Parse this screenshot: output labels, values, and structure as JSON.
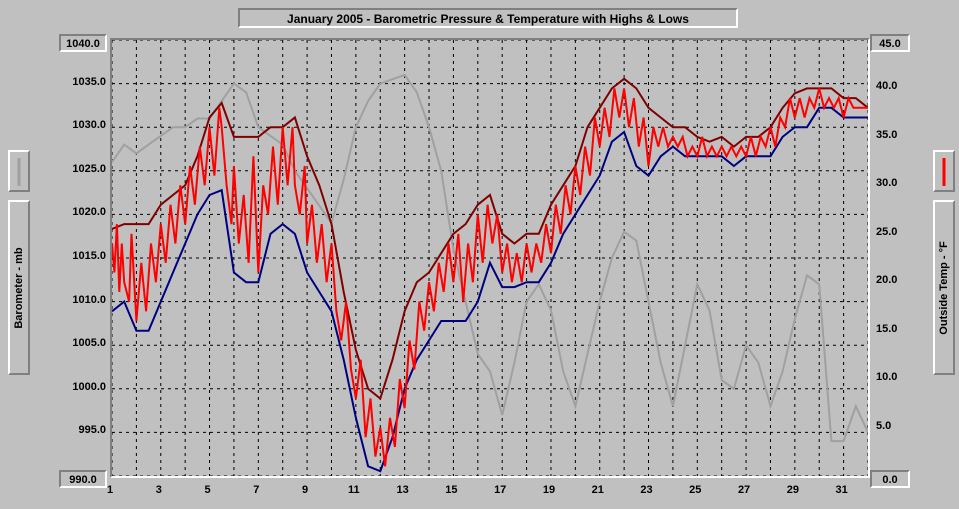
{
  "title": "January 2005 - Barometric Pressure & Temperature with Highs & Lows",
  "left_axis_label": "Barometer - mb",
  "right_axis_label": "Outside Temp - °F",
  "background_color": "#c0c0c0",
  "grid_color": "#000000",
  "plot": {
    "x_min": 1,
    "x_max": 32,
    "y_left_min": 990.0,
    "y_left_max": 1040.0,
    "y_right_min": 0.0,
    "y_right_max": 45.0,
    "x_ticks": [
      1,
      3,
      5,
      7,
      9,
      11,
      13,
      15,
      17,
      19,
      21,
      23,
      25,
      27,
      29,
      31
    ],
    "y_left_ticks": [
      990.0,
      995.0,
      1000.0,
      1005.0,
      1010.0,
      1015.0,
      1020.0,
      1025.0,
      1030.0,
      1035.0,
      1040.0
    ],
    "y_right_ticks": [
      0.0,
      5.0,
      10.0,
      15.0,
      20.0,
      25.0,
      30.0,
      35.0,
      40.0,
      45.0
    ]
  },
  "series": {
    "barometer": {
      "color": "#a0a0a0",
      "width": 2,
      "data": [
        [
          1,
          1026
        ],
        [
          1.5,
          1028
        ],
        [
          2,
          1027
        ],
        [
          2.5,
          1028
        ],
        [
          3,
          1029
        ],
        [
          3.5,
          1030
        ],
        [
          4,
          1030
        ],
        [
          4.5,
          1031
        ],
        [
          5,
          1031
        ],
        [
          5.5,
          1033
        ],
        [
          6,
          1035
        ],
        [
          6.5,
          1034
        ],
        [
          7,
          1030
        ],
        [
          7.5,
          1029
        ],
        [
          8,
          1028
        ],
        [
          8.5,
          1025
        ],
        [
          9,
          1023
        ],
        [
          9.5,
          1021
        ],
        [
          10,
          1019
        ],
        [
          10.5,
          1024
        ],
        [
          11,
          1030
        ],
        [
          11.5,
          1033
        ],
        [
          12,
          1035
        ],
        [
          12.5,
          1035.5
        ],
        [
          13,
          1036
        ],
        [
          13.5,
          1034
        ],
        [
          14,
          1030
        ],
        [
          14.5,
          1025
        ],
        [
          15,
          1016
        ],
        [
          15.5,
          1010
        ],
        [
          16,
          1004
        ],
        [
          16.5,
          1002
        ],
        [
          17,
          997
        ],
        [
          17.5,
          1003
        ],
        [
          18,
          1010
        ],
        [
          18.5,
          1012
        ],
        [
          19,
          1009
        ],
        [
          19.5,
          1002
        ],
        [
          20,
          998
        ],
        [
          20.5,
          1004
        ],
        [
          21,
          1010
        ],
        [
          21.5,
          1015
        ],
        [
          22,
          1018
        ],
        [
          22.5,
          1017
        ],
        [
          23,
          1010
        ],
        [
          23.5,
          1003
        ],
        [
          24,
          998
        ],
        [
          24.5,
          1005
        ],
        [
          25,
          1012
        ],
        [
          25.5,
          1009
        ],
        [
          26,
          1001
        ],
        [
          26.5,
          1000
        ],
        [
          27,
          1005
        ],
        [
          27.5,
          1003
        ],
        [
          28,
          998
        ],
        [
          28.5,
          1002
        ],
        [
          29,
          1008
        ],
        [
          29.5,
          1013
        ],
        [
          30,
          1012
        ],
        [
          30.5,
          994
        ],
        [
          31,
          994
        ],
        [
          31.5,
          998
        ],
        [
          32,
          995
        ]
      ]
    },
    "temp_high": {
      "color": "#800000",
      "width": 2,
      "data": [
        [
          1,
          25.5
        ],
        [
          1.5,
          26
        ],
        [
          2,
          26
        ],
        [
          2.5,
          26
        ],
        [
          3,
          28
        ],
        [
          3.5,
          29
        ],
        [
          4,
          30
        ],
        [
          4.5,
          33
        ],
        [
          5,
          37
        ],
        [
          5.5,
          38.5
        ],
        [
          6,
          35
        ],
        [
          6.5,
          35
        ],
        [
          7,
          35
        ],
        [
          7.5,
          36
        ],
        [
          8,
          36
        ],
        [
          8.5,
          37
        ],
        [
          9,
          33
        ],
        [
          9.5,
          30
        ],
        [
          10,
          26
        ],
        [
          10.5,
          19
        ],
        [
          11,
          13
        ],
        [
          11.5,
          9
        ],
        [
          12,
          8
        ],
        [
          12.5,
          12
        ],
        [
          13,
          17
        ],
        [
          13.5,
          20
        ],
        [
          14,
          21
        ],
        [
          14.5,
          23
        ],
        [
          15,
          25
        ],
        [
          15.5,
          26
        ],
        [
          16,
          28
        ],
        [
          16.5,
          29
        ],
        [
          17,
          25
        ],
        [
          17.5,
          24
        ],
        [
          18,
          25
        ],
        [
          18.5,
          25
        ],
        [
          19,
          28
        ],
        [
          19.5,
          30
        ],
        [
          20,
          32
        ],
        [
          20.5,
          36
        ],
        [
          21,
          38
        ],
        [
          21.5,
          40
        ],
        [
          22,
          41
        ],
        [
          22.5,
          40
        ],
        [
          23,
          38
        ],
        [
          23.5,
          37
        ],
        [
          24,
          36
        ],
        [
          24.5,
          36
        ],
        [
          25,
          35
        ],
        [
          25.5,
          34.5
        ],
        [
          26,
          35
        ],
        [
          26.5,
          34
        ],
        [
          27,
          35
        ],
        [
          27.5,
          35
        ],
        [
          28,
          36
        ],
        [
          28.5,
          38
        ],
        [
          29,
          39.5
        ],
        [
          29.5,
          40
        ],
        [
          30,
          40
        ],
        [
          30.5,
          40
        ],
        [
          31,
          39
        ],
        [
          31.5,
          39
        ],
        [
          32,
          38
        ]
      ]
    },
    "temp_low": {
      "color": "#000080",
      "width": 2,
      "data": [
        [
          1,
          17
        ],
        [
          1.5,
          18
        ],
        [
          2,
          15
        ],
        [
          2.5,
          15
        ],
        [
          3,
          18
        ],
        [
          3.5,
          21
        ],
        [
          4,
          24
        ],
        [
          4.5,
          27
        ],
        [
          5,
          29
        ],
        [
          5.5,
          29.5
        ],
        [
          6,
          21
        ],
        [
          6.5,
          20
        ],
        [
          7,
          20
        ],
        [
          7.5,
          25
        ],
        [
          8,
          26
        ],
        [
          8.5,
          25
        ],
        [
          9,
          21
        ],
        [
          9.5,
          19
        ],
        [
          10,
          17
        ],
        [
          10.5,
          12
        ],
        [
          11,
          6
        ],
        [
          11.5,
          1
        ],
        [
          12,
          0.5
        ],
        [
          12.5,
          4
        ],
        [
          13,
          9
        ],
        [
          13.5,
          12
        ],
        [
          14,
          14
        ],
        [
          14.5,
          16
        ],
        [
          15,
          16
        ],
        [
          15.5,
          16
        ],
        [
          16,
          18
        ],
        [
          16.5,
          22
        ],
        [
          17,
          19.5
        ],
        [
          17.5,
          19.5
        ],
        [
          18,
          20
        ],
        [
          18.5,
          20
        ],
        [
          19,
          22
        ],
        [
          19.5,
          25
        ],
        [
          20,
          27
        ],
        [
          20.5,
          29
        ],
        [
          21,
          31
        ],
        [
          21.5,
          34.5
        ],
        [
          22,
          35.5
        ],
        [
          22.5,
          32
        ],
        [
          23,
          31
        ],
        [
          23.5,
          33
        ],
        [
          24,
          34
        ],
        [
          24.5,
          33
        ],
        [
          25,
          33
        ],
        [
          25.5,
          33
        ],
        [
          26,
          33
        ],
        [
          26.5,
          32
        ],
        [
          27,
          33
        ],
        [
          27.5,
          33
        ],
        [
          28,
          33
        ],
        [
          28.5,
          35
        ],
        [
          29,
          36
        ],
        [
          29.5,
          36
        ],
        [
          30,
          38
        ],
        [
          30.5,
          38
        ],
        [
          31,
          37
        ],
        [
          31.5,
          37
        ],
        [
          32,
          37
        ]
      ]
    },
    "temp": {
      "color": "#ff0000",
      "width": 2,
      "data": [
        [
          1,
          24
        ],
        [
          1.1,
          21
        ],
        [
          1.2,
          26
        ],
        [
          1.3,
          19
        ],
        [
          1.4,
          24
        ],
        [
          1.5,
          20
        ],
        [
          1.7,
          18
        ],
        [
          1.8,
          25
        ],
        [
          2,
          16
        ],
        [
          2.2,
          22
        ],
        [
          2.4,
          17
        ],
        [
          2.6,
          24
        ],
        [
          2.8,
          20
        ],
        [
          3,
          26
        ],
        [
          3.2,
          22
        ],
        [
          3.4,
          28
        ],
        [
          3.6,
          24
        ],
        [
          3.8,
          30
        ],
        [
          4,
          26
        ],
        [
          4.2,
          32
        ],
        [
          4.4,
          28
        ],
        [
          4.6,
          34
        ],
        [
          4.8,
          30
        ],
        [
          5,
          36
        ],
        [
          5.2,
          31
        ],
        [
          5.4,
          38
        ],
        [
          5.5,
          36
        ],
        [
          5.7,
          30
        ],
        [
          5.9,
          26
        ],
        [
          6,
          32
        ],
        [
          6.2,
          24
        ],
        [
          6.4,
          29
        ],
        [
          6.6,
          22
        ],
        [
          6.8,
          33
        ],
        [
          7,
          21
        ],
        [
          7.2,
          30
        ],
        [
          7.4,
          27
        ],
        [
          7.6,
          34
        ],
        [
          7.8,
          28
        ],
        [
          8,
          36
        ],
        [
          8.2,
          30
        ],
        [
          8.4,
          36
        ],
        [
          8.5,
          30
        ],
        [
          8.7,
          27
        ],
        [
          8.9,
          32
        ],
        [
          9,
          24
        ],
        [
          9.2,
          28
        ],
        [
          9.4,
          22
        ],
        [
          9.6,
          26
        ],
        [
          9.8,
          20
        ],
        [
          10,
          24
        ],
        [
          10.2,
          17
        ],
        [
          10.4,
          14
        ],
        [
          10.6,
          18
        ],
        [
          10.8,
          11
        ],
        [
          11,
          8
        ],
        [
          11.2,
          12
        ],
        [
          11.4,
          4
        ],
        [
          11.6,
          8
        ],
        [
          11.8,
          2
        ],
        [
          12,
          5
        ],
        [
          12.2,
          1
        ],
        [
          12.4,
          6
        ],
        [
          12.6,
          3
        ],
        [
          12.8,
          10
        ],
        [
          13,
          7
        ],
        [
          13.2,
          14
        ],
        [
          13.4,
          11
        ],
        [
          13.6,
          18
        ],
        [
          13.8,
          15
        ],
        [
          14,
          20
        ],
        [
          14.2,
          17
        ],
        [
          14.4,
          22
        ],
        [
          14.6,
          19
        ],
        [
          14.8,
          24
        ],
        [
          15,
          20
        ],
        [
          15.2,
          25
        ],
        [
          15.4,
          18
        ],
        [
          15.6,
          24
        ],
        [
          15.8,
          20
        ],
        [
          16,
          27
        ],
        [
          16.2,
          22
        ],
        [
          16.4,
          28
        ],
        [
          16.6,
          24
        ],
        [
          16.8,
          27
        ],
        [
          17,
          21
        ],
        [
          17.2,
          24
        ],
        [
          17.4,
          20
        ],
        [
          17.6,
          23
        ],
        [
          17.8,
          20
        ],
        [
          18,
          24
        ],
        [
          18.2,
          21
        ],
        [
          18.4,
          24
        ],
        [
          18.6,
          22
        ],
        [
          18.8,
          26
        ],
        [
          19,
          23
        ],
        [
          19.2,
          28
        ],
        [
          19.4,
          25
        ],
        [
          19.6,
          30
        ],
        [
          19.8,
          27
        ],
        [
          20,
          32
        ],
        [
          20.2,
          29
        ],
        [
          20.4,
          34
        ],
        [
          20.6,
          31
        ],
        [
          20.8,
          37
        ],
        [
          21,
          34
        ],
        [
          21.2,
          38
        ],
        [
          21.4,
          35
        ],
        [
          21.6,
          40
        ],
        [
          21.8,
          37
        ],
        [
          22,
          40
        ],
        [
          22.2,
          36
        ],
        [
          22.4,
          39
        ],
        [
          22.6,
          34
        ],
        [
          22.8,
          37
        ],
        [
          23,
          32
        ],
        [
          23.2,
          36
        ],
        [
          23.4,
          34
        ],
        [
          23.6,
          36
        ],
        [
          23.8,
          34
        ],
        [
          24,
          35
        ],
        [
          24.2,
          34
        ],
        [
          24.4,
          35
        ],
        [
          24.6,
          33
        ],
        [
          24.8,
          34
        ],
        [
          25,
          33
        ],
        [
          25.2,
          35
        ],
        [
          25.4,
          33
        ],
        [
          25.6,
          34
        ],
        [
          25.8,
          33
        ],
        [
          26,
          34
        ],
        [
          26.2,
          33
        ],
        [
          26.4,
          34
        ],
        [
          26.6,
          33
        ],
        [
          26.8,
          34
        ],
        [
          27,
          33
        ],
        [
          27.2,
          35
        ],
        [
          27.4,
          33
        ],
        [
          27.6,
          35
        ],
        [
          27.8,
          34
        ],
        [
          28,
          36
        ],
        [
          28.2,
          34
        ],
        [
          28.4,
          37
        ],
        [
          28.6,
          36
        ],
        [
          28.8,
          39
        ],
        [
          29,
          37
        ],
        [
          29.2,
          39
        ],
        [
          29.4,
          37
        ],
        [
          29.6,
          39
        ],
        [
          29.8,
          38
        ],
        [
          30,
          40
        ],
        [
          30.2,
          38
        ],
        [
          30.4,
          39
        ],
        [
          30.6,
          38
        ],
        [
          30.8,
          39
        ],
        [
          31,
          37
        ],
        [
          31.2,
          39
        ],
        [
          31.4,
          38
        ],
        [
          31.6,
          38
        ],
        [
          31.8,
          38
        ],
        [
          32,
          38
        ]
      ]
    }
  }
}
